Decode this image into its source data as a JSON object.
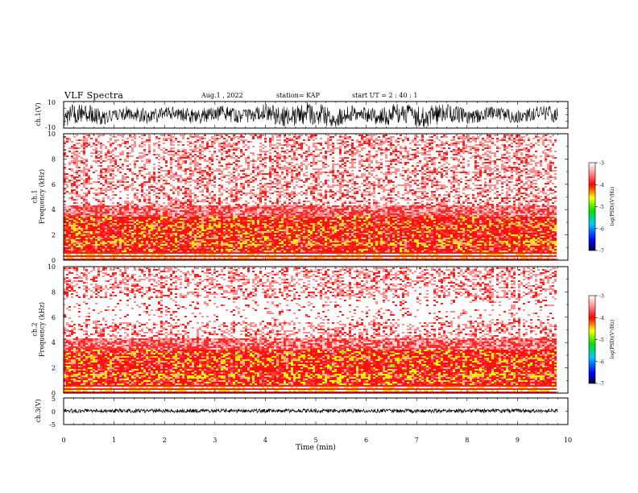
{
  "header": {
    "title": "VLF Spectra",
    "date": "Aug.1  , 2022",
    "station": "station= KAP",
    "start": "start  UT  =   2  : 40 : 1"
  },
  "chart_data": [
    {
      "type": "line",
      "panel": "channel-1-waveform",
      "ylabel": "ch.1(V)",
      "ylim": [
        -10,
        10
      ],
      "yticks": [
        "10",
        "-10"
      ],
      "xlim": [
        0,
        10
      ],
      "data_end_min": 9.8,
      "color": "#000000"
    },
    {
      "type": "heatmap",
      "panel": "channel-1-spectrogram",
      "ylabel": "ch.1\nFrequency  (kHz)",
      "xlim": [
        0,
        10
      ],
      "ylim": [
        0,
        10
      ],
      "yticks": [
        "0",
        "2",
        "4",
        "6",
        "8",
        "10"
      ],
      "data_end_min": 9.8,
      "colorbar": {
        "label": "log(PSD)(V²/Hz)",
        "range": [
          -7,
          -3
        ],
        "ticks": [
          "-3",
          "-4",
          "-5",
          "-6",
          "-7"
        ]
      }
    },
    {
      "type": "heatmap",
      "panel": "channel-2-spectrogram",
      "ylabel": "ch.2\nFrequency  (kHz)",
      "xlim": [
        0,
        10
      ],
      "ylim": [
        0,
        10
      ],
      "yticks": [
        "0",
        "2",
        "4",
        "6",
        "8",
        "10"
      ],
      "data_end_min": 9.8,
      "colorbar": {
        "label": "log(PSD)(V²/Hz)",
        "range": [
          -7,
          -3
        ],
        "ticks": [
          "-3",
          "-4",
          "-5",
          "-6",
          "-7"
        ]
      }
    },
    {
      "type": "line",
      "panel": "channel-3-waveform",
      "ylabel": "ch.3(V)",
      "ylim": [
        -5,
        5
      ],
      "yticks": [
        "5",
        "0",
        "-5"
      ],
      "xlim": [
        0,
        10
      ],
      "data_end_min": 9.8,
      "color": "#000000"
    }
  ],
  "xaxis": {
    "label": "Time  (min)",
    "ticks": [
      "0",
      "1",
      "2",
      "3",
      "4",
      "5",
      "6",
      "7",
      "8",
      "9",
      "10"
    ]
  }
}
